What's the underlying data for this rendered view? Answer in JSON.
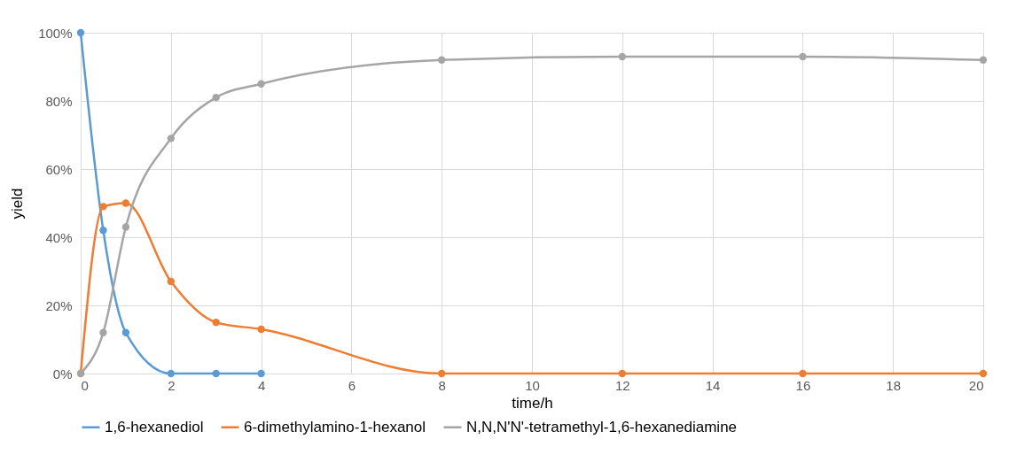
{
  "chart_data": {
    "type": "line",
    "xlabel": "time/h",
    "ylabel": "yield",
    "xlim": [
      0,
      20
    ],
    "xticks": [
      0,
      2,
      4,
      6,
      8,
      10,
      12,
      14,
      16,
      18,
      20
    ],
    "ylim": [
      0,
      100
    ],
    "yticks": [
      {
        "value": 0,
        "label": "0%"
      },
      {
        "value": 20,
        "label": "20%"
      },
      {
        "value": 40,
        "label": "40%"
      },
      {
        "value": 60,
        "label": "60%"
      },
      {
        "value": 80,
        "label": "80%"
      },
      {
        "value": 100,
        "label": "100%"
      }
    ],
    "grid": true,
    "legend": "bottom",
    "marker": "circle",
    "line_style": "solid",
    "series": [
      {
        "name": "1,6-hexanediol",
        "color": "#5b9bd5",
        "x": [
          0,
          0.5,
          1,
          2,
          3,
          4
        ],
        "values": [
          100,
          42,
          12,
          0,
          0,
          0
        ]
      },
      {
        "name": "6-dimethylamino-1-hexanol",
        "color": "#ed7d31",
        "x": [
          0,
          0.5,
          1,
          2,
          3,
          4,
          8,
          12,
          16,
          20
        ],
        "values": [
          0,
          49,
          50,
          27,
          15,
          13,
          0,
          0,
          0,
          0
        ]
      },
      {
        "name": "N,N,N'N'-tetramethyl-1,6-hexanediamine",
        "color": "#a5a5a5",
        "x": [
          0,
          0.5,
          1,
          2,
          3,
          4,
          8,
          12,
          16,
          20
        ],
        "values": [
          0,
          12,
          43,
          69,
          81,
          85,
          92,
          93,
          93,
          92
        ]
      }
    ]
  }
}
